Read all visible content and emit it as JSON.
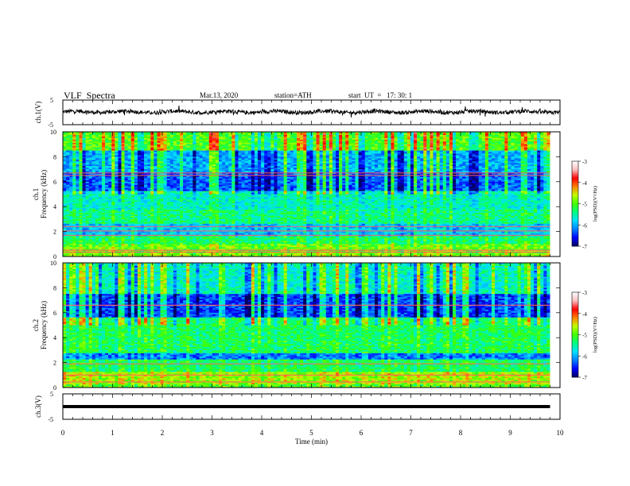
{
  "header": {
    "title": "VLF  Spectra",
    "date": "Mar.13, 2020",
    "station": "station=ATH",
    "start": "start  UT  =   17: 30: 1"
  },
  "chart_data": [
    {
      "type": "line",
      "name": "ch1-waveform",
      "ylabel": "ch.1(V)",
      "ylim": [
        -5,
        5
      ],
      "yticks": [
        "5",
        "-5"
      ],
      "xlim": [
        0,
        10
      ],
      "baseline": 0.2
    },
    {
      "type": "heatmap",
      "name": "ch1-spectrogram",
      "ylabel": "ch.1\nFrequency (kHz)",
      "ylabel_top": "ch.1",
      "ylabel_bottom": "Frequency  (kHz)",
      "ylim": [
        0,
        10
      ],
      "yticks": [
        "0",
        "2",
        "4",
        "6",
        "8",
        "10"
      ],
      "xlim": [
        0,
        9.8
      ],
      "colorbar": {
        "label": "log(PSD)(V²/Hz)",
        "range": [
          -7,
          -3
        ],
        "ticks": [
          "-3",
          "-4",
          "-5",
          "-6",
          "-7"
        ]
      },
      "band_levels": [
        {
          "f": [
            0,
            0.3
          ],
          "level": -4.8
        },
        {
          "f": [
            0.3,
            1.0
          ],
          "level": -4.9
        },
        {
          "f": [
            1.0,
            1.6
          ],
          "level": -5.3
        },
        {
          "f": [
            1.6,
            2.6
          ],
          "level": -5.9
        },
        {
          "f": [
            2.6,
            3.8
          ],
          "level": -5.4
        },
        {
          "f": [
            3.8,
            5.2
          ],
          "level": -5.6
        },
        {
          "f": [
            5.2,
            6.8
          ],
          "level": -6.3
        },
        {
          "f": [
            6.8,
            8.5
          ],
          "level": -6.0
        },
        {
          "f": [
            8.5,
            10
          ],
          "level": -5.0
        }
      ],
      "lines_khz": [
        0.35,
        0.5,
        1.7,
        2.05,
        2.4,
        6.5,
        6.7
      ]
    },
    {
      "type": "heatmap",
      "name": "ch2-spectrogram",
      "ylabel_top": "ch.2",
      "ylabel_bottom": "Frequency  (kHz)",
      "ylim": [
        0,
        10
      ],
      "yticks": [
        "0",
        "2",
        "4",
        "6",
        "8",
        "10"
      ],
      "xlim": [
        0,
        9.8
      ],
      "colorbar": {
        "label": "log(PSD)(V²/Hz)",
        "range": [
          -7,
          -3
        ],
        "ticks": [
          "-3",
          "-4",
          "-5",
          "-6",
          "-7"
        ]
      },
      "band_levels": [
        {
          "f": [
            0,
            0.3
          ],
          "level": -5.0
        },
        {
          "f": [
            0.3,
            1.2
          ],
          "level": -4.7
        },
        {
          "f": [
            1.2,
            2.2
          ],
          "level": -5.3
        },
        {
          "f": [
            2.2,
            2.8
          ],
          "level": -6.2
        },
        {
          "f": [
            2.8,
            5.6
          ],
          "level": -5.3
        },
        {
          "f": [
            5.6,
            7.5
          ],
          "level": -6.4
        },
        {
          "f": [
            7.5,
            10
          ],
          "level": -5.6
        }
      ],
      "lines_khz": [
        0.45,
        1.0,
        1.9,
        6.6
      ]
    },
    {
      "type": "line",
      "name": "ch3-waveform",
      "ylabel": "ch.3(V)",
      "ylim": [
        -5,
        5
      ],
      "yticks": [
        "5",
        "-5"
      ],
      "xlim": [
        0,
        9.8
      ],
      "baseline": 0
    }
  ],
  "xaxis": {
    "label": "Time  (min)",
    "ticks": [
      "0",
      "1",
      "2",
      "3",
      "4",
      "5",
      "6",
      "7",
      "8",
      "9",
      "10"
    ]
  },
  "colors": {
    "colormap": [
      "#000060",
      "#0000ff",
      "#0080ff",
      "#00e0ff",
      "#00ff80",
      "#40ff00",
      "#c0ff00",
      "#ff8000",
      "#ff0000",
      "#ffc0c0",
      "#ffffff"
    ]
  }
}
